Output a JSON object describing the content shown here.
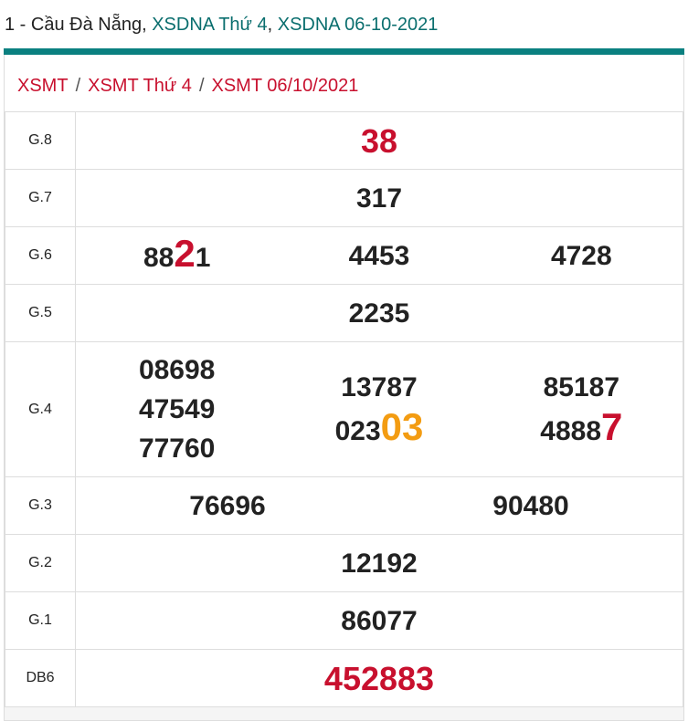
{
  "title": {
    "prefix": "1 - Cầu Đà Nẵng, ",
    "link1": "XSDNA Thứ 4",
    "sep": ", ",
    "link2": "XSDNA 06-10-2021"
  },
  "breadcrumb": [
    "XSMT",
    "XSMT Thứ 4",
    "XSMT 06/10/2021"
  ],
  "colors": {
    "accent": "#0a8080",
    "red": "#c8102e",
    "orange": "#f39c12"
  },
  "rows": [
    {
      "label": "G.8",
      "cols": [
        [
          {
            "v": "38",
            "style": "red-big"
          }
        ]
      ]
    },
    {
      "label": "G.7",
      "cols": [
        [
          {
            "v": "317"
          }
        ]
      ]
    },
    {
      "label": "G.6",
      "cols": [
        [
          {
            "v": "88",
            "hl": "2",
            "hlcolor": "red",
            "after": "1"
          }
        ],
        [
          {
            "v": "4453"
          }
        ],
        [
          {
            "v": "4728"
          }
        ]
      ]
    },
    {
      "label": "G.5",
      "cols": [
        [
          {
            "v": "2235"
          }
        ]
      ]
    },
    {
      "label": "G.4",
      "cols": [
        [
          {
            "v": "08698"
          },
          {
            "v": "47549"
          },
          {
            "v": "77760"
          }
        ],
        [
          {
            "v": "13787"
          },
          {
            "v": "023",
            "hl": "03",
            "hlcolor": "orange"
          }
        ],
        [
          {
            "v": "85187"
          },
          {
            "v": "4888",
            "hl": "7",
            "hlcolor": "red"
          }
        ]
      ]
    },
    {
      "label": "G.3",
      "cols": [
        [
          {
            "v": "76696"
          }
        ],
        [
          {
            "v": "90480"
          }
        ]
      ]
    },
    {
      "label": "G.2",
      "cols": [
        [
          {
            "v": "12192"
          }
        ]
      ]
    },
    {
      "label": "G.1",
      "cols": [
        [
          {
            "v": "86077"
          }
        ]
      ]
    },
    {
      "label": "DB6",
      "cols": [
        [
          {
            "v": "452883",
            "style": "red-big"
          }
        ]
      ]
    }
  ]
}
